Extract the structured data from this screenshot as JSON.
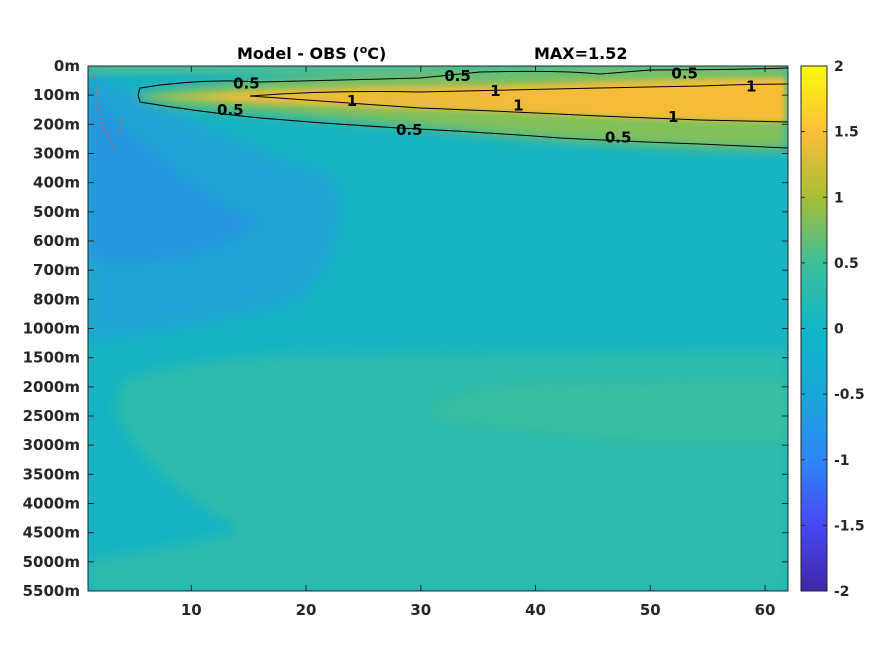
{
  "chart_data": {
    "type": "heatmap",
    "title": "Model - OBS (",
    "title_superscript": "o",
    "title_unit": "C)",
    "max_label": "MAX=1.52",
    "y_tick_labels": [
      "0m",
      "100m",
      "200m",
      "300m",
      "400m",
      "500m",
      "600m",
      "700m",
      "800m",
      "1000m",
      "1500m",
      "2000m",
      "2500m",
      "3000m",
      "3500m",
      "4000m",
      "4500m",
      "5000m",
      "5500m"
    ],
    "x_ticks": [
      10,
      20,
      30,
      40,
      50,
      60
    ],
    "x_tick_labels": [
      "10",
      "20",
      "30",
      "40",
      "50",
      "60"
    ],
    "xlim": [
      1,
      62
    ],
    "colorbar": {
      "range": [
        -2,
        2
      ],
      "ticks": [
        2,
        1.5,
        1,
        0.5,
        0,
        -0.5,
        -1,
        -1.5,
        -2
      ],
      "tick_labels": [
        "2",
        "1.5",
        "1",
        "0.5",
        "0",
        "-0.5",
        "-1",
        "-1.5",
        "-2"
      ],
      "colormap": "parula"
    },
    "contour_levels": [
      0.5,
      1
    ],
    "contour_labels": [
      {
        "text": "0.5",
        "x": 14.8,
        "depth_index": 0.6
      },
      {
        "text": "0.5",
        "x": 33.2,
        "depth_index": 0.35
      },
      {
        "text": "0.5",
        "x": 53.0,
        "depth_index": 0.25
      },
      {
        "text": "1",
        "x": 24.0,
        "depth_index": 1.2
      },
      {
        "text": "1",
        "x": 36.5,
        "depth_index": 0.85
      },
      {
        "text": "1",
        "x": 38.5,
        "depth_index": 1.35
      },
      {
        "text": "1",
        "x": 58.8,
        "depth_index": 0.7
      },
      {
        "text": "1",
        "x": 52.0,
        "depth_index": 1.75
      },
      {
        "text": "0.5",
        "x": 13.4,
        "depth_index": 1.5
      },
      {
        "text": "0.5",
        "x": 29.0,
        "depth_index": 2.2
      },
      {
        "text": "0.5",
        "x": 47.2,
        "depth_index": 2.45
      }
    ],
    "colors": {
      "frame": "#262626",
      "contour": "#000000",
      "neg_contour": "#d06a4a"
    }
  }
}
